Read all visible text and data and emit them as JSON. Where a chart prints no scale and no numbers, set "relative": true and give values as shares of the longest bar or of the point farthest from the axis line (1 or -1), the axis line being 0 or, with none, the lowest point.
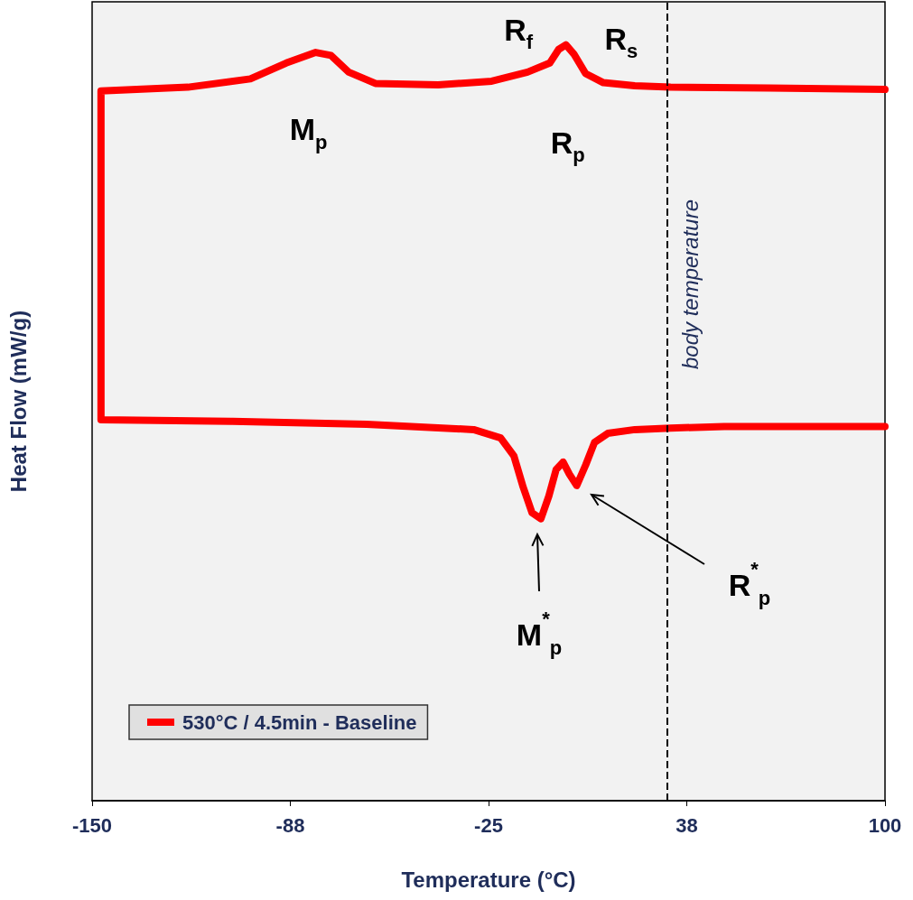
{
  "chart_data": {
    "type": "line",
    "relative": true,
    "xlabel": "Temperature (°C)",
    "ylabel": "Heat Flow (mW/g)",
    "xlim": [
      -150,
      100
    ],
    "xticks": [
      -150,
      {
        "value": -87.5,
        "label": "-88"
      },
      -25,
      {
        "value": 37.5,
        "label": "38"
      },
      100
    ],
    "grid": false,
    "legend": "bottom left",
    "marker": "none",
    "line_style": "solid",
    "series": [
      {
        "name": "530°C / 4.5min - Baseline",
        "color": "#ff0000",
        "x": [
          100,
          77.5,
          49.3,
          32.4,
          21.1,
          12.6,
          8.4,
          5.6,
          2.8,
          0.5,
          -1.5,
          -3.7,
          -6.0,
          -8.5,
          -11.3,
          -14.1,
          -17.0,
          -21.2,
          -29.7,
          -63.5,
          -105.7,
          -147.2,
          -147.2,
          -119.8,
          -100.1,
          -88.8,
          -79.5,
          -74.7,
          -69.1,
          -60.7,
          -40.9,
          -24.0,
          -12.7,
          -5.7,
          -2.9,
          -0.6,
          1.9,
          5.6,
          11.2,
          21.1,
          32.4,
          63.4,
          100
        ],
        "values": [
          0.495,
          0.495,
          0.495,
          0.493,
          0.491,
          0.486,
          0.474,
          0.444,
          0.417,
          0.432,
          0.448,
          0.438,
          0.403,
          0.373,
          0.381,
          0.415,
          0.456,
          0.48,
          0.491,
          0.498,
          0.502,
          0.504,
          0.939,
          0.944,
          0.955,
          0.976,
          0.99,
          0.986,
          0.964,
          0.949,
          0.947,
          0.952,
          0.964,
          0.976,
          0.994,
          1,
          0.988,
          0.962,
          0.95,
          0.946,
          0.944,
          0.943,
          0.941
        ]
      }
    ],
    "ref_lines": [
      {
        "axis": "x",
        "value": 31.2,
        "label": "body temperature",
        "color": "#000000",
        "line_style": "dashed"
      }
    ],
    "annotations": [
      {
        "text": "M$_{p}$",
        "x": -79.5,
        "y": 0.99
      },
      {
        "text": "R$_{f}$",
        "x": -12.7,
        "y": 0.964
      },
      {
        "text": "R$_{s}$",
        "x": 21.1,
        "y": 0.946
      },
      {
        "text": "R$_{p}$",
        "x": -0.6,
        "y": 1
      },
      "M$^{*}$$_{p}$",
      "R$^{*}$$_{p}$"
    ]
  }
}
